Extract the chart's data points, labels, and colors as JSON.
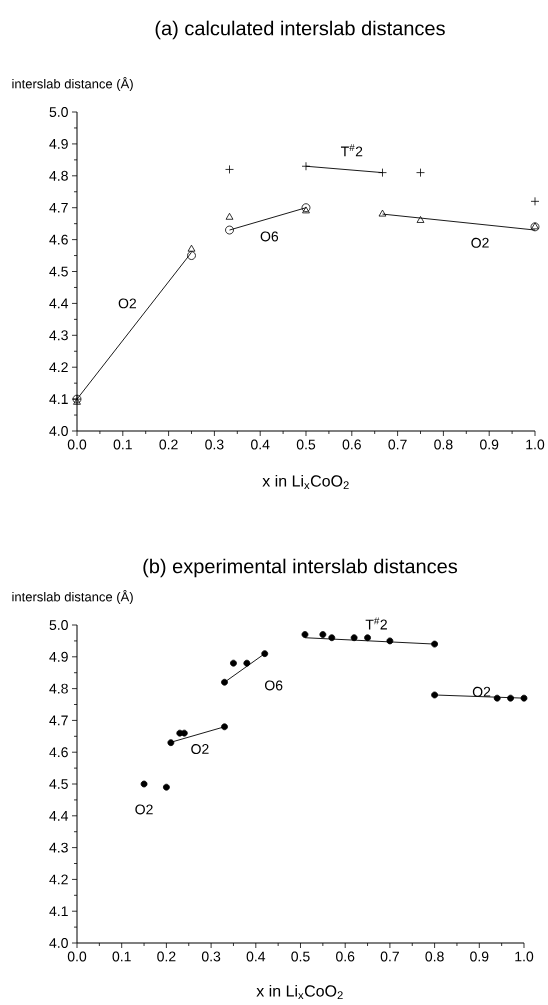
{
  "chart_data": [
    {
      "type": "scatter",
      "title": "(a) calculated interslab distances",
      "xlabel": "x in Li$_{x}$CoO$_{2}$",
      "ylabel": "interslab distance (Å)",
      "xlim": [
        0,
        1
      ],
      "ylim": [
        4.0,
        5.0
      ],
      "xticks": [
        {
          "value": 0,
          "label": "0.0"
        },
        {
          "value": 0.1,
          "label": "0.1"
        },
        {
          "value": 0.2,
          "label": "0.2"
        },
        {
          "value": 0.3,
          "label": "0.3"
        },
        {
          "value": 0.4,
          "label": "0.4"
        },
        {
          "value": 0.5,
          "label": "0.5"
        },
        {
          "value": 0.6,
          "label": "0.6"
        },
        {
          "value": 0.7,
          "label": "0.7"
        },
        {
          "value": 0.8,
          "label": "0.8"
        },
        {
          "value": 0.9,
          "label": "0.9"
        },
        {
          "value": 1,
          "label": "1.0"
        }
      ],
      "yticks": [
        {
          "value": 4.0,
          "label": "4.0"
        },
        {
          "value": 4.1,
          "label": "4.1"
        },
        {
          "value": 4.2,
          "label": "4.2"
        },
        {
          "value": 4.3,
          "label": "4.3"
        },
        {
          "value": 4.4,
          "label": "4.4"
        },
        {
          "value": 4.5,
          "label": "4.5"
        },
        {
          "value": 4.6,
          "label": "4.6"
        },
        {
          "value": 4.7,
          "label": "4.7"
        },
        {
          "value": 4.8,
          "label": "4.8"
        },
        {
          "value": 4.9,
          "label": "4.9"
        },
        {
          "value": 5.0,
          "label": "5.0"
        }
      ],
      "grid": false,
      "series": [
        {
          "type": "scatter",
          "marker": "cross",
          "color": "#000000",
          "x": [
            0,
            0.333,
            0.5,
            0.667,
            0.75,
            1.0
          ],
          "values": [
            4.1,
            4.82,
            4.83,
            4.81,
            4.81,
            4.72
          ]
        },
        {
          "type": "scatter",
          "marker": "triangle",
          "color": "#000000",
          "x": [
            0,
            0.25,
            0.333,
            0.5,
            0.667,
            0.75,
            1.0
          ],
          "values": [
            4.09,
            4.57,
            4.67,
            4.69,
            4.68,
            4.66,
            4.64
          ]
        },
        {
          "type": "scatter",
          "marker": "circle",
          "color": "#000000",
          "x": [
            0,
            0.25,
            0.333,
            0.5,
            1.0
          ],
          "values": [
            4.1,
            4.55,
            4.63,
            4.7,
            4.64
          ]
        },
        {
          "type": "line",
          "marker": "none",
          "color": "#000000",
          "x": [
            0,
            0.25
          ],
          "values": [
            4.1,
            4.56
          ]
        },
        {
          "type": "line",
          "marker": "none",
          "color": "#000000",
          "x": [
            0.333,
            0.5
          ],
          "values": [
            4.63,
            4.7
          ]
        },
        {
          "type": "line",
          "marker": "none",
          "color": "#000000",
          "x": [
            0.5,
            0.667
          ],
          "values": [
            4.83,
            4.81
          ]
        },
        {
          "type": "line",
          "marker": "none",
          "color": "#000000",
          "x": [
            0.667,
            1.0
          ],
          "values": [
            4.68,
            4.63
          ]
        }
      ],
      "annotations": [
        "O2",
        "O6",
        "T$^{#}$2",
        "O2"
      ]
    },
    {
      "type": "scatter",
      "title": "(b) experimental interslab distances",
      "xlabel": "x in Li$_{x}$CoO$_{2}$",
      "ylabel": "interslab distance (Å)",
      "xlim": [
        0,
        1
      ],
      "ylim": [
        4.0,
        5.0
      ],
      "xticks": [
        {
          "value": 0,
          "label": "0.0"
        },
        {
          "value": 0.1,
          "label": "0.1"
        },
        {
          "value": 0.2,
          "label": "0.2"
        },
        {
          "value": 0.3,
          "label": "0.3"
        },
        {
          "value": 0.4,
          "label": "0.4"
        },
        {
          "value": 0.5,
          "label": "0.5"
        },
        {
          "value": 0.6,
          "label": "0.6"
        },
        {
          "value": 0.7,
          "label": "0.7"
        },
        {
          "value": 0.8,
          "label": "0.8"
        },
        {
          "value": 0.9,
          "label": "0.9"
        },
        {
          "value": 1,
          "label": "1.0"
        }
      ],
      "yticks": [
        {
          "value": 4.0,
          "label": "4.0"
        },
        {
          "value": 4.1,
          "label": "4.1"
        },
        {
          "value": 4.2,
          "label": "4.2"
        },
        {
          "value": 4.3,
          "label": "4.3"
        },
        {
          "value": 4.4,
          "label": "4.4"
        },
        {
          "value": 4.5,
          "label": "4.5"
        },
        {
          "value": 4.6,
          "label": "4.6"
        },
        {
          "value": 4.7,
          "label": "4.7"
        },
        {
          "value": 4.8,
          "label": "4.8"
        },
        {
          "value": 4.9,
          "label": "4.9"
        },
        {
          "value": 5.0,
          "label": "5.0"
        }
      ],
      "grid": false,
      "series": [
        {
          "type": "scatter",
          "marker": "circle",
          "color": "#000000",
          "x": [
            0.15,
            0.2,
            0.21,
            0.23,
            0.24,
            0.33,
            0.33,
            0.35,
            0.38,
            0.42,
            0.51,
            0.55,
            0.57,
            0.62,
            0.65,
            0.7,
            0.8,
            0.8,
            0.94,
            0.97,
            1.0
          ],
          "values": [
            4.5,
            4.49,
            4.63,
            4.66,
            4.66,
            4.68,
            4.82,
            4.88,
            4.88,
            4.91,
            4.97,
            4.97,
            4.96,
            4.96,
            4.96,
            4.95,
            4.94,
            4.78,
            4.77,
            4.77,
            4.77
          ]
        },
        {
          "type": "line",
          "marker": "none",
          "color": "#000000",
          "x": [
            0.207,
            0.33
          ],
          "values": [
            4.63,
            4.68
          ]
        },
        {
          "type": "line",
          "marker": "none",
          "color": "#000000",
          "x": [
            0.33,
            0.42
          ],
          "values": [
            4.82,
            4.91
          ]
        },
        {
          "type": "line",
          "marker": "none",
          "color": "#000000",
          "x": [
            0.51,
            0.8
          ],
          "values": [
            4.96,
            4.94
          ]
        },
        {
          "type": "line",
          "marker": "none",
          "color": "#000000",
          "x": [
            0.8,
            1.0
          ],
          "values": [
            4.78,
            4.77
          ]
        }
      ],
      "annotations": [
        "O2",
        "O2",
        "O6",
        "T$^{#}$2",
        "O2"
      ]
    }
  ]
}
